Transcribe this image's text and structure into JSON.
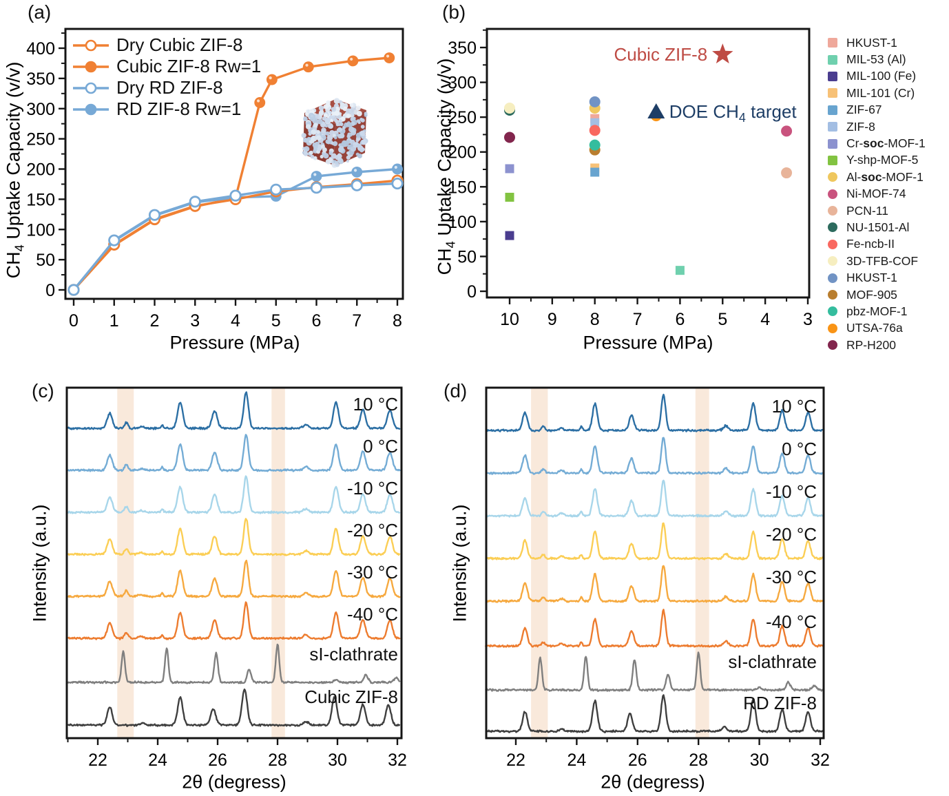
{
  "figure": {
    "panel_labels": {
      "a": "(a)",
      "b": "(b)",
      "c": "(c)",
      "d": "(d)"
    }
  },
  "chart_data": [
    {
      "id": "a",
      "panel_label": "(a)",
      "type": "line",
      "xlabel": "Pressure (MPa)",
      "ylabel": "CH4 Uptake Capacity (v/v)",
      "ylabel_parts": {
        "pre": "CH",
        "sub": "4",
        "post": " Uptake Capacity (v/v)"
      },
      "xlim": [
        0,
        8
      ],
      "ylim": [
        0,
        420
      ],
      "xticks": [
        0,
        1,
        2,
        3,
        4,
        5,
        6,
        7,
        8
      ],
      "yticks": [
        0,
        50,
        100,
        150,
        200,
        250,
        300,
        350,
        400
      ],
      "x_minor_step": 0.5,
      "y_minor_step": 25,
      "series": [
        {
          "name": "Dry Cubic ZIF-8",
          "color": "#F08033",
          "marker": "open-circle",
          "x": [
            0,
            1,
            2,
            3,
            4,
            5,
            6,
            7,
            8
          ],
          "y": [
            0,
            75,
            117,
            139,
            150,
            163,
            170,
            175,
            181
          ]
        },
        {
          "name": "Cubic ZIF-8 Rw=1",
          "color": "#F08033",
          "marker": "filled-circle",
          "x": [
            0,
            1,
            2,
            3,
            4,
            4.6,
            4.9,
            5.8,
            6.9,
            7.8
          ],
          "y": [
            0,
            74,
            116,
            138,
            152,
            310,
            348,
            369,
            379,
            384
          ]
        },
        {
          "name": "Dry RD ZIF-8",
          "color": "#77A9D6",
          "marker": "open-circle",
          "x": [
            0,
            1,
            2,
            3,
            4,
            5,
            6,
            7,
            8
          ],
          "y": [
            0,
            82,
            124,
            146,
            156,
            166,
            169,
            173,
            176
          ]
        },
        {
          "name": "RD ZIF-8 Rw=1",
          "color": "#77A9D6",
          "marker": "filled-circle",
          "x": [
            0,
            1,
            2,
            3,
            4,
            5,
            6,
            7,
            8
          ],
          "y": [
            0,
            81,
            123,
            145,
            153,
            155,
            188,
            195,
            200
          ]
        }
      ]
    },
    {
      "id": "b",
      "panel_label": "(b)",
      "type": "scatter",
      "xlabel": "Pressure (MPa)",
      "ylabel": "CH4 Uptake Capacity (v/v)",
      "ylabel_parts": {
        "pre": "CH",
        "sub": "4",
        "post": " Uptake Capacity (v/v)"
      },
      "x_reversed": true,
      "xlim": [
        10.5,
        3
      ],
      "ylim": [
        0,
        375
      ],
      "xticks": [
        10,
        9,
        8,
        7,
        6,
        5,
        4,
        3
      ],
      "yticks": [
        0,
        50,
        100,
        150,
        200,
        250,
        300,
        350
      ],
      "x_minor_step": 0.5,
      "y_minor_step": 25,
      "points": [
        {
          "label": "HKUST-1",
          "marker": "square",
          "color": "#EFA89B",
          "x": 8,
          "y": 248
        },
        {
          "label": "MIL-53 (Al)",
          "marker": "square",
          "color": "#6FD0AE",
          "x": 6,
          "y": 30
        },
        {
          "label": "MIL-100 (Fe)",
          "marker": "square",
          "color": "#4A3D8F",
          "x": 10,
          "y": 80
        },
        {
          "label": "MIL-101 (Cr)",
          "marker": "square",
          "color": "#F7C177",
          "x": 8,
          "y": 177
        },
        {
          "label": "ZIF-67",
          "marker": "square",
          "color": "#68A4CF",
          "x": 8,
          "y": 171
        },
        {
          "label": "ZIF-8",
          "marker": "square",
          "color": "#A3BEE3",
          "x": 8,
          "y": 242
        },
        {
          "label": "Cr-soc-MOF-1",
          "bold": "soc",
          "marker": "square",
          "color": "#8C92CF",
          "x": 10,
          "y": 176
        },
        {
          "label": "Y-shp-MOF-5",
          "marker": "square",
          "color": "#82C341",
          "x": 10,
          "y": 135
        },
        {
          "label": "Al-soc-MOF-1",
          "bold": "soc",
          "marker": "circle",
          "color": "#EFC75E",
          "x": 8,
          "y": 263
        },
        {
          "label": "Ni-MOF-74",
          "marker": "circle",
          "color": "#C9537E",
          "x": 3.5,
          "y": 230
        },
        {
          "label": "PCN-11",
          "marker": "circle",
          "color": "#E8B49A",
          "x": 3.5,
          "y": 170
        },
        {
          "label": "NU-1501-Al",
          "marker": "circle",
          "color": "#2D6B5E",
          "x": 10,
          "y": 260
        },
        {
          "label": "Fe-ncb-II",
          "marker": "circle",
          "color": "#F96860",
          "x": 8,
          "y": 231
        },
        {
          "label": "3D-TFB-COF",
          "marker": "circle",
          "color": "#F6EEC0",
          "x": 10,
          "y": 263
        },
        {
          "label": "HKUST-1",
          "marker": "circle",
          "color": "#7193C4",
          "x": 8,
          "y": 272
        },
        {
          "label": "MOF-905",
          "marker": "circle",
          "color": "#B97E2F",
          "x": 8,
          "y": 203
        },
        {
          "label": "pbz-MOF-1",
          "marker": "circle",
          "color": "#34BD9E",
          "x": 8,
          "y": 210
        },
        {
          "label": "UTSA-76a",
          "marker": "circle",
          "color": "#F99416",
          "x": 6.56,
          "y": 252
        },
        {
          "label": "RP-H200",
          "marker": "circle",
          "color": "#82264D",
          "x": 10,
          "y": 221
        }
      ],
      "annotations": [
        {
          "name": "cubic-zif8-highlight",
          "text": "Cubic ZIF-8",
          "marker": "star",
          "color": "#BE4B44",
          "x": 5.0,
          "y": 340,
          "side": "left"
        },
        {
          "name": "doe-ch4-target",
          "text": "DOE CH4 target",
          "parts": {
            "pre": "DOE CH",
            "sub": "4",
            "post": " target"
          },
          "marker": "triangle",
          "color": "#1E3E66",
          "x": 6.56,
          "y": 258,
          "side": "right"
        }
      ]
    },
    {
      "id": "c",
      "panel_label": "(c)",
      "type": "xrd-stack",
      "xlabel": "2θ (degress)",
      "ylabel": "Intensity (a.u.)",
      "xlim": [
        21,
        32.1
      ],
      "xticks": [
        22,
        24,
        26,
        28,
        30,
        32
      ],
      "x_minor_step": 1,
      "highlight_bands": [
        [
          22.65,
          23.2
        ],
        [
          27.8,
          28.25
        ]
      ],
      "band_color": "#F8E3D2",
      "peak_sets": {
        "temp": [
          [
            22.4,
            0.42,
            0.12
          ],
          [
            22.95,
            0.16,
            0.08
          ],
          [
            23.45,
            0.05,
            0.12
          ],
          [
            24.15,
            0.09,
            0.05
          ],
          [
            24.75,
            0.72,
            0.12
          ],
          [
            25.9,
            0.5,
            0.12
          ],
          [
            26.95,
            1.0,
            0.11
          ],
          [
            28.95,
            0.1,
            0.12
          ],
          [
            29.95,
            0.72,
            0.12
          ],
          [
            30.85,
            0.52,
            0.12
          ],
          [
            31.75,
            0.5,
            0.12
          ]
        ],
        "clathrate": [
          [
            22.85,
            0.82,
            0.08
          ],
          [
            24.3,
            0.9,
            0.08
          ],
          [
            25.95,
            0.78,
            0.085
          ],
          [
            27.05,
            0.35,
            0.09
          ],
          [
            28.0,
            1.0,
            0.08
          ],
          [
            29.95,
            0.07,
            0.1
          ],
          [
            30.95,
            0.2,
            0.1
          ],
          [
            31.95,
            0.12,
            0.1
          ]
        ],
        "reference": [
          [
            22.4,
            0.5,
            0.12
          ],
          [
            23.5,
            0.06,
            0.12
          ],
          [
            24.75,
            0.78,
            0.12
          ],
          [
            25.85,
            0.45,
            0.12
          ],
          [
            26.9,
            1.0,
            0.12
          ],
          [
            28.95,
            0.1,
            0.12
          ],
          [
            29.9,
            0.78,
            0.12
          ],
          [
            30.85,
            0.58,
            0.12
          ],
          [
            31.7,
            0.55,
            0.12
          ]
        ]
      },
      "traces": [
        {
          "label": "10 °C",
          "color": "#2C6FA4",
          "peaks": "temp"
        },
        {
          "label": "0 °C",
          "color": "#74ACD5",
          "peaks": "temp"
        },
        {
          "label": "-10 °C",
          "color": "#A8D6EA",
          "peaks": "temp"
        },
        {
          "label": "-20 °C",
          "color": "#FBCE55",
          "peaks": "temp"
        },
        {
          "label": "-30 °C",
          "color": "#F6A93F",
          "peaks": "temp"
        },
        {
          "label": "-40 °C",
          "color": "#ED7C2F",
          "peaks": "temp"
        },
        {
          "label": "sI-clathrate",
          "color": "#7F7F7F",
          "peaks": "clathrate"
        },
        {
          "label": "Cubic ZIF-8",
          "color": "#3F3F3F",
          "peaks": "reference"
        }
      ]
    },
    {
      "id": "d",
      "panel_label": "(d)",
      "type": "xrd-stack",
      "xlabel": "2θ (degress)",
      "ylabel": "Intensity (a.u.)",
      "xlim": [
        21,
        32.1
      ],
      "xticks": [
        22,
        24,
        26,
        28,
        30,
        32
      ],
      "x_minor_step": 1,
      "highlight_bands": [
        [
          22.5,
          23.05
        ],
        [
          27.9,
          28.35
        ]
      ],
      "band_color": "#F8E3D2",
      "peak_sets": {
        "temp": [
          [
            22.3,
            0.5,
            0.11
          ],
          [
            22.9,
            0.11,
            0.08
          ],
          [
            23.5,
            0.07,
            0.1
          ],
          [
            24.15,
            0.12,
            0.05
          ],
          [
            24.6,
            0.75,
            0.11
          ],
          [
            25.8,
            0.42,
            0.11
          ],
          [
            26.85,
            1.0,
            0.1
          ],
          [
            28.9,
            0.13,
            0.11
          ],
          [
            29.8,
            0.75,
            0.11
          ],
          [
            30.75,
            0.55,
            0.11
          ],
          [
            31.6,
            0.5,
            0.11
          ]
        ],
        "clathrate": [
          [
            22.8,
            0.85,
            0.08
          ],
          [
            24.3,
            0.9,
            0.08
          ],
          [
            25.9,
            0.8,
            0.085
          ],
          [
            27.0,
            0.4,
            0.09
          ],
          [
            28.0,
            1.0,
            0.08
          ],
          [
            30.0,
            0.07,
            0.1
          ],
          [
            30.95,
            0.2,
            0.1
          ],
          [
            31.8,
            0.1,
            0.1
          ]
        ],
        "reference": [
          [
            22.3,
            0.55,
            0.11
          ],
          [
            23.5,
            0.07,
            0.1
          ],
          [
            24.6,
            0.85,
            0.11
          ],
          [
            25.75,
            0.5,
            0.11
          ],
          [
            26.85,
            1.0,
            0.11
          ],
          [
            28.85,
            0.12,
            0.11
          ],
          [
            29.8,
            0.9,
            0.11
          ],
          [
            30.75,
            0.6,
            0.11
          ],
          [
            31.6,
            0.55,
            0.11
          ]
        ]
      },
      "traces": [
        {
          "label": "10 °C",
          "color": "#2C6FA4",
          "peaks": "temp"
        },
        {
          "label": "0 °C",
          "color": "#74ACD5",
          "peaks": "temp"
        },
        {
          "label": "-10 °C",
          "color": "#A8D6EA",
          "peaks": "temp"
        },
        {
          "label": "-20 °C",
          "color": "#FBCE55",
          "peaks": "temp"
        },
        {
          "label": "-30 °C",
          "color": "#F6A93F",
          "peaks": "temp"
        },
        {
          "label": "-40 °C",
          "color": "#ED7C2F",
          "peaks": "temp"
        },
        {
          "label": "sI-clathrate",
          "color": "#7F7F7F",
          "peaks": "clathrate"
        },
        {
          "label": "RD ZIF-8",
          "color": "#3F3F3F",
          "peaks": "reference"
        }
      ]
    }
  ]
}
